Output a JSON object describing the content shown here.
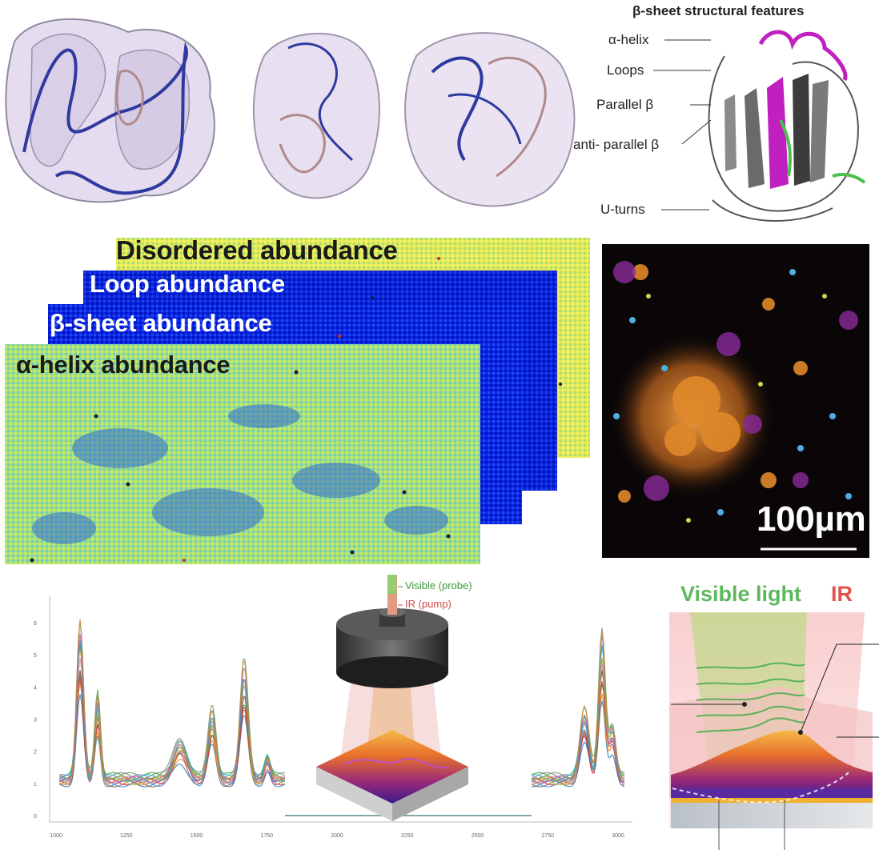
{
  "structure_panel": {
    "title": "β-sheet structural features",
    "labels": [
      "α-helix",
      "Loops",
      "Parallel β",
      "anti- parallel β",
      "U-turns"
    ]
  },
  "abundance_maps": {
    "layers": [
      {
        "label": "Disordered abundance",
        "colors": [
          "#f2ef5a",
          "#c8ea5c",
          "#9fdc7a",
          "#e8e860"
        ]
      },
      {
        "label": "Loop abundance",
        "colors": [
          "#0a1fd8",
          "#0020ff",
          "#1438ee",
          "#0000c8"
        ]
      },
      {
        "label": "β-sheet abundance",
        "colors": [
          "#0a22d8",
          "#0a2cf0",
          "#1e46e8",
          "#001ac0"
        ]
      },
      {
        "label": "α-helix abundance",
        "colors": [
          "#9be37b",
          "#c9ea5e",
          "#62c6d6",
          "#3e8fe8"
        ]
      }
    ]
  },
  "microscopy": {
    "scale_bar_label": "100µm"
  },
  "spectra": {
    "x_ticks": [
      "1000",
      "1250",
      "1500",
      "1750",
      "2000",
      "2250",
      "2500",
      "2750",
      "3000"
    ],
    "y_ticks": [
      "0",
      "1",
      "2",
      "3",
      "4",
      "5",
      "6"
    ],
    "num_traces": 14,
    "palette": [
      "#1f77b4",
      "#ff7f0e",
      "#2ca02c",
      "#d62728",
      "#9467bd",
      "#8c564b",
      "#e377c2",
      "#7f7f7f",
      "#bcbd22",
      "#17becf",
      "#3a8fd8",
      "#c05a9a",
      "#5aa05a",
      "#d08a3a"
    ]
  },
  "microscope": {
    "probe_label": "Visible (probe)",
    "pump_label": "IR (pump)"
  },
  "schematic": {
    "visible_label": "Visible light",
    "ir_label": "IR",
    "visible_color": "#5cb85c",
    "ir_color": "#e0534a"
  }
}
